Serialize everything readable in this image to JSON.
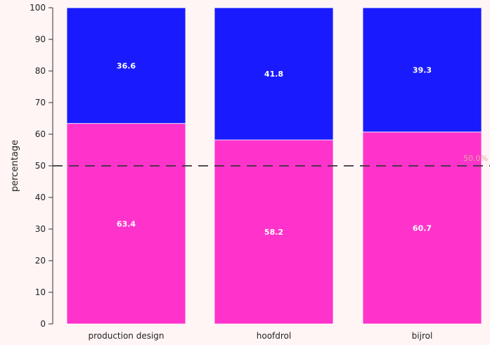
{
  "chart_data": {
    "type": "bar",
    "stacked": true,
    "categories": [
      "production design",
      "hoofdrol",
      "bijrol"
    ],
    "series": [
      {
        "values": [
          63.4,
          58.2,
          60.7
        ],
        "color": "#ff33cc"
      },
      {
        "values": [
          36.6,
          41.8,
          39.3
        ],
        "color": "#1a1aff"
      }
    ],
    "data_labels": [
      [
        "63.4",
        "58.2",
        "60.7"
      ],
      [
        "36.6",
        "41.8",
        "39.3"
      ]
    ],
    "ylabel": "percentage",
    "ylim": [
      0,
      100
    ],
    "yticks": [
      "0",
      "10",
      "20",
      "30",
      "40",
      "50",
      "60",
      "70",
      "80",
      "90",
      "100"
    ],
    "reference_line": {
      "value": 50,
      "label": "50.0%",
      "style": "dashed"
    },
    "grid": false,
    "legend": "none"
  }
}
